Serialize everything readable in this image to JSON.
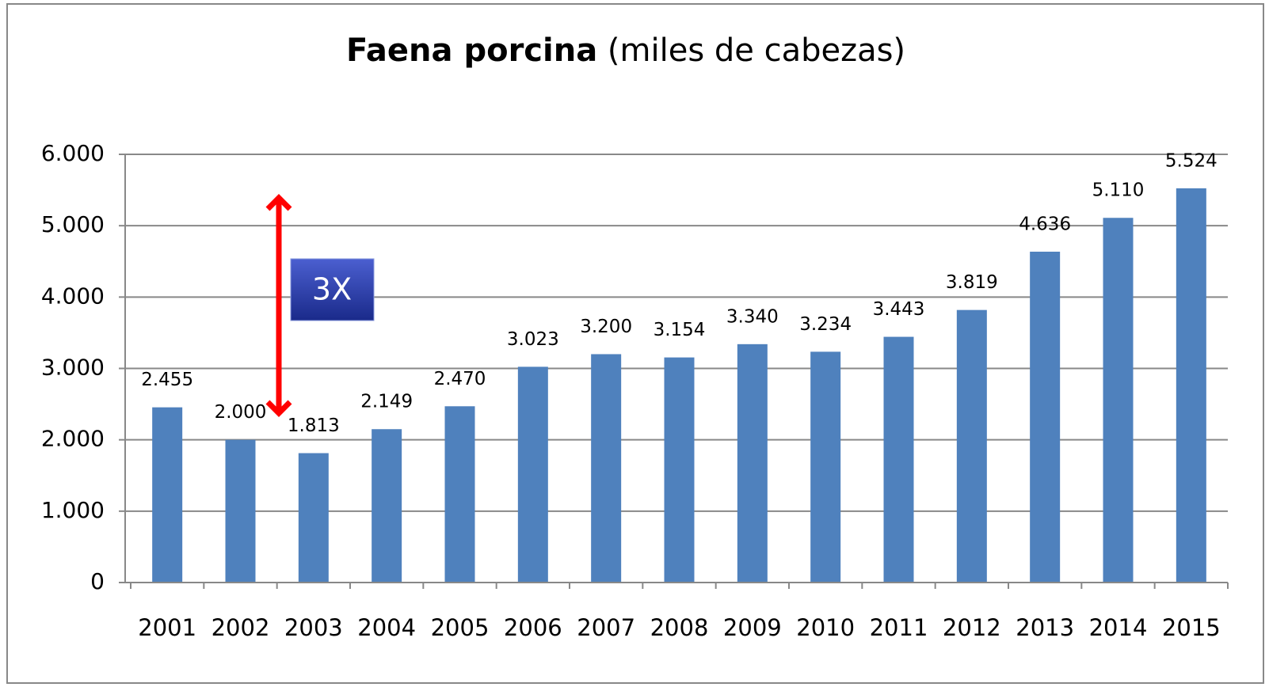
{
  "chart_data": {
    "type": "bar",
    "title": "Faena porcina",
    "subtitle": "(miles de cabezas)",
    "annotations": [
      "3X"
    ],
    "categories": [
      "2001",
      "2002",
      "2003",
      "2004",
      "2005",
      "2006",
      "2007",
      "2008",
      "2009",
      "2010",
      "2011",
      "2012",
      "2013",
      "2014",
      "2015"
    ],
    "values": [
      2455,
      2000,
      1813,
      2149,
      2470,
      3023,
      3200,
      3154,
      3340,
      3234,
      3443,
      3819,
      4636,
      5110,
      5524
    ],
    "value_labels": [
      "2.455",
      "2.000",
      "1.813",
      "2.149",
      "2.470",
      "3.023",
      "3.200",
      "3.154",
      "3.340",
      "3.234",
      "3.443",
      "3.819",
      "4.636",
      "5.110",
      "5.524"
    ],
    "color": "#4f81bd",
    "ylim": [
      0,
      6000
    ],
    "yticks": [
      0,
      {
        "value": 1000,
        "label": "1.000"
      },
      {
        "value": 2000,
        "label": "2.000"
      },
      {
        "value": 3000,
        "label": "3.000"
      },
      {
        "value": 4000,
        "label": "4.000"
      },
      {
        "value": 5000,
        "label": "5.000"
      },
      {
        "value": 6000,
        "label": "6.000"
      }
    ],
    "grid": true
  }
}
